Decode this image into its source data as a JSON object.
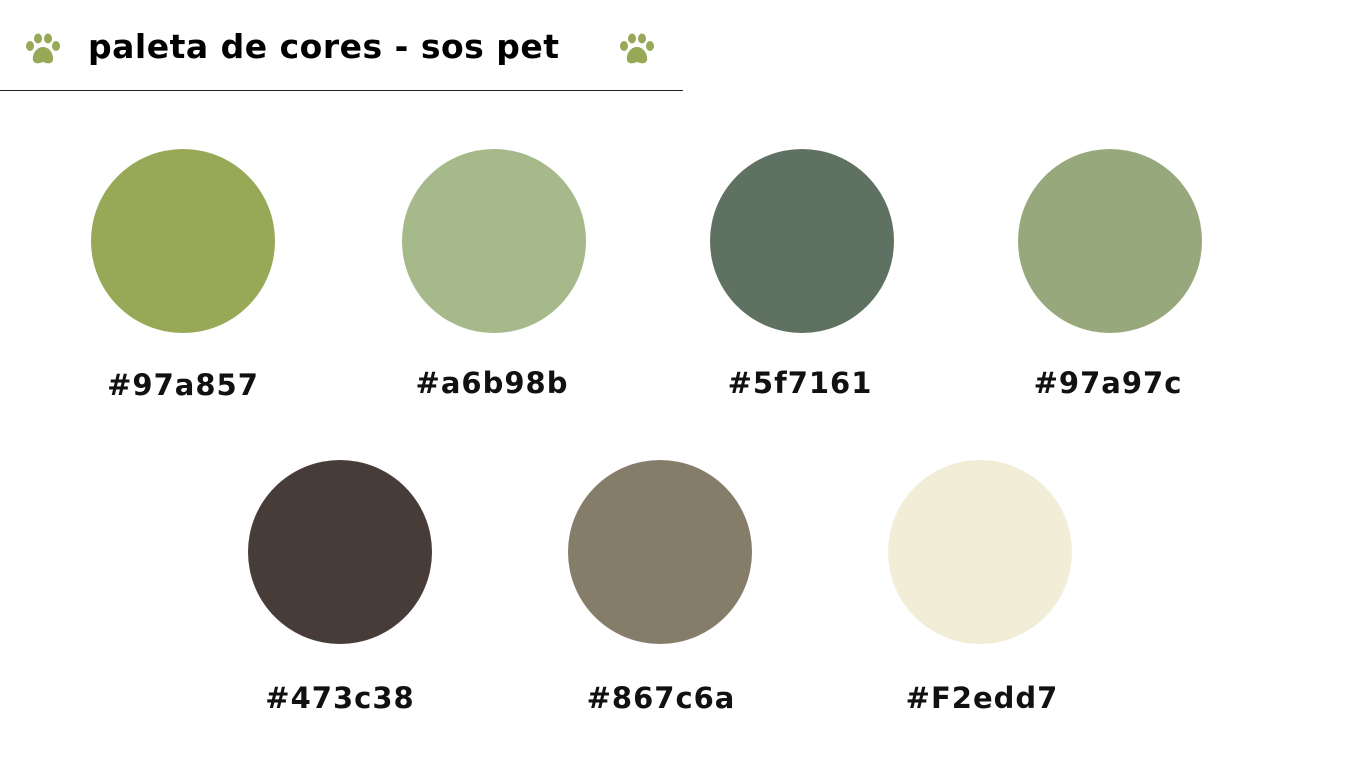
{
  "header": {
    "title": "paleta de cores - sos pet",
    "paw_color": "#97a857"
  },
  "palette": {
    "row1": [
      {
        "hex_label": "#97a857",
        "color": "#97a857"
      },
      {
        "hex_label": "#a6b98b",
        "color": "#a6b98b"
      },
      {
        "hex_label": "#5f7161",
        "color": "#5f7161"
      },
      {
        "hex_label": "#97a97c",
        "color": "#97a97c"
      }
    ],
    "row2": [
      {
        "hex_label": "#473c38",
        "color": "#473c38"
      },
      {
        "hex_label": "#867c6a",
        "color": "#867c6a"
      },
      {
        "hex_label": "#F2edd7",
        "color": "#f2edd7"
      }
    ]
  }
}
